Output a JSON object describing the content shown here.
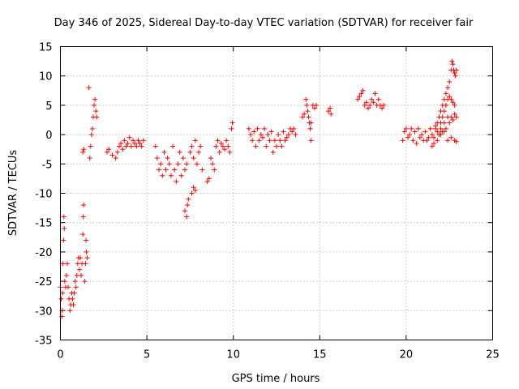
{
  "chart_data": {
    "type": "scatter",
    "title": "Day 346 of 2025, Sidereal Day-to-day VTEC variation (SDTVAR) for receiver fair",
    "xlabel": "GPS time / hours",
    "ylabel": "SDTVAR / TECUs",
    "xlim": [
      0,
      25
    ],
    "ylim": [
      -35,
      15
    ],
    "xticks": [
      0,
      5,
      10,
      15,
      20,
      25
    ],
    "yticks": [
      -35,
      -30,
      -25,
      -20,
      -15,
      -10,
      -5,
      0,
      5,
      10,
      15
    ],
    "xtick_labels": [
      "0",
      "5",
      "10",
      "15",
      "20",
      "25"
    ],
    "ytick_labels": [
      "-35",
      "-30",
      "-25",
      "-20",
      "-15",
      "-10",
      "-5",
      "0",
      "5",
      "10",
      "15"
    ],
    "grid": true,
    "marker": "+",
    "series": [
      {
        "name": "SDTVAR",
        "color": "#ff0000",
        "points": [
          [
            0.0,
            -26
          ],
          [
            0.05,
            -28
          ],
          [
            0.08,
            -31
          ],
          [
            0.1,
            -30
          ],
          [
            0.12,
            -27
          ],
          [
            0.15,
            -22
          ],
          [
            0.18,
            -18
          ],
          [
            0.2,
            -14
          ],
          [
            0.22,
            -16
          ],
          [
            0.25,
            -25
          ],
          [
            0.3,
            -26
          ],
          [
            0.35,
            -24
          ],
          [
            0.4,
            -22
          ],
          [
            0.45,
            -26
          ],
          [
            0.5,
            -28
          ],
          [
            0.55,
            -30
          ],
          [
            0.6,
            -29
          ],
          [
            0.65,
            -27
          ],
          [
            0.7,
            -28
          ],
          [
            0.75,
            -29
          ],
          [
            0.8,
            -27
          ],
          [
            0.85,
            -25
          ],
          [
            0.9,
            -26
          ],
          [
            0.95,
            -24
          ],
          [
            1.0,
            -22
          ],
          [
            1.05,
            -21
          ],
          [
            1.1,
            -23
          ],
          [
            1.15,
            -21
          ],
          [
            1.2,
            -24
          ],
          [
            1.25,
            -22
          ],
          [
            1.3,
            -17
          ],
          [
            1.32,
            -14
          ],
          [
            1.34,
            -12
          ],
          [
            1.4,
            -25
          ],
          [
            1.45,
            -22
          ],
          [
            1.5,
            -20
          ],
          [
            1.48,
            -18
          ],
          [
            1.55,
            -21
          ],
          [
            1.3,
            -3
          ],
          [
            1.35,
            -2.5
          ],
          [
            1.7,
            -4
          ],
          [
            1.75,
            -2
          ],
          [
            1.8,
            0
          ],
          [
            1.85,
            1
          ],
          [
            1.9,
            3
          ],
          [
            1.95,
            5
          ],
          [
            2.0,
            6
          ],
          [
            2.05,
            4
          ],
          [
            2.1,
            3
          ],
          [
            1.65,
            8
          ],
          [
            2.7,
            -3
          ],
          [
            2.8,
            -2.5
          ],
          [
            3.0,
            -3.5
          ],
          [
            3.2,
            -4
          ],
          [
            3.3,
            -3
          ],
          [
            3.4,
            -2
          ],
          [
            3.5,
            -1.5
          ],
          [
            3.6,
            -2.5
          ],
          [
            3.7,
            -1
          ],
          [
            3.8,
            -2
          ],
          [
            3.9,
            -1.5
          ],
          [
            4.0,
            -0.5
          ],
          [
            4.1,
            -2
          ],
          [
            4.2,
            -1
          ],
          [
            4.3,
            -1.5
          ],
          [
            4.4,
            -2
          ],
          [
            4.5,
            -1
          ],
          [
            4.6,
            -1.5
          ],
          [
            4.7,
            -2
          ],
          [
            4.8,
            -1
          ],
          [
            5.5,
            -2
          ],
          [
            5.6,
            -4
          ],
          [
            5.7,
            -6
          ],
          [
            5.8,
            -5
          ],
          [
            5.9,
            -7
          ],
          [
            6.0,
            -3
          ],
          [
            6.1,
            -6
          ],
          [
            6.2,
            -4
          ],
          [
            6.3,
            -5
          ],
          [
            6.4,
            -7
          ],
          [
            6.5,
            -2
          ],
          [
            6.6,
            -6
          ],
          [
            6.7,
            -8
          ],
          [
            6.8,
            -5
          ],
          [
            6.9,
            -3
          ],
          [
            7.0,
            -7
          ],
          [
            7.1,
            -4
          ],
          [
            7.2,
            -6
          ],
          [
            7.3,
            -5
          ],
          [
            7.2,
            -13
          ],
          [
            7.3,
            -14
          ],
          [
            7.35,
            -12
          ],
          [
            7.4,
            -11
          ],
          [
            7.6,
            -10
          ],
          [
            7.7,
            -9
          ],
          [
            7.8,
            -9.5
          ],
          [
            7.5,
            -3
          ],
          [
            7.6,
            -2
          ],
          [
            7.7,
            -4
          ],
          [
            7.8,
            -1
          ],
          [
            7.9,
            -5
          ],
          [
            8.0,
            -3
          ],
          [
            8.1,
            -2
          ],
          [
            8.2,
            -6
          ],
          [
            8.5,
            -8
          ],
          [
            8.6,
            -7.5
          ],
          [
            8.7,
            -4
          ],
          [
            8.8,
            -5
          ],
          [
            8.9,
            -6
          ],
          [
            9.0,
            -2
          ],
          [
            9.1,
            -1
          ],
          [
            9.2,
            -3
          ],
          [
            9.3,
            -1.5
          ],
          [
            9.4,
            -2
          ],
          [
            9.5,
            -2.5
          ],
          [
            9.6,
            -1
          ],
          [
            9.7,
            -2
          ],
          [
            9.8,
            -3
          ],
          [
            9.9,
            1
          ],
          [
            9.95,
            2
          ],
          [
            10.9,
            1
          ],
          [
            11.0,
            0
          ],
          [
            11.1,
            -1
          ],
          [
            11.2,
            0.5
          ],
          [
            11.3,
            -2
          ],
          [
            11.4,
            1
          ],
          [
            11.5,
            -1
          ],
          [
            11.6,
            0
          ],
          [
            11.7,
            -0.5
          ],
          [
            11.8,
            1
          ],
          [
            11.9,
            -2
          ],
          [
            12.0,
            0
          ],
          [
            12.1,
            -1
          ],
          [
            12.2,
            0.5
          ],
          [
            12.3,
            -3
          ],
          [
            12.4,
            -1
          ],
          [
            12.5,
            -2
          ],
          [
            12.6,
            0
          ],
          [
            12.7,
            -1
          ],
          [
            12.8,
            -2
          ],
          [
            12.9,
            0.5
          ],
          [
            13.0,
            -1
          ],
          [
            13.1,
            -0.5
          ],
          [
            13.2,
            0
          ],
          [
            13.3,
            1
          ],
          [
            13.4,
            0.5
          ],
          [
            13.5,
            1
          ],
          [
            13.6,
            0
          ],
          [
            14.0,
            3
          ],
          [
            14.1,
            3.5
          ],
          [
            14.2,
            6
          ],
          [
            14.25,
            5
          ],
          [
            14.3,
            4
          ],
          [
            14.35,
            3
          ],
          [
            14.4,
            2
          ],
          [
            14.45,
            1
          ],
          [
            14.5,
            -1
          ],
          [
            14.5,
            2
          ],
          [
            14.6,
            5
          ],
          [
            14.7,
            4.5
          ],
          [
            14.8,
            5
          ],
          [
            15.5,
            4
          ],
          [
            15.6,
            4.5
          ],
          [
            15.65,
            3.5
          ],
          [
            17.2,
            6
          ],
          [
            17.3,
            6.5
          ],
          [
            17.4,
            7
          ],
          [
            17.5,
            7.5
          ],
          [
            17.6,
            5
          ],
          [
            17.7,
            5.5
          ],
          [
            17.8,
            4.5
          ],
          [
            17.9,
            5
          ],
          [
            18.0,
            6
          ],
          [
            18.1,
            5.5
          ],
          [
            18.2,
            7
          ],
          [
            18.3,
            5
          ],
          [
            18.4,
            6
          ],
          [
            18.5,
            5
          ],
          [
            18.6,
            4.5
          ],
          [
            18.7,
            5
          ],
          [
            19.8,
            -1
          ],
          [
            19.9,
            0.5
          ],
          [
            20.0,
            1
          ],
          [
            20.1,
            -0.5
          ],
          [
            20.2,
            0
          ],
          [
            20.3,
            1
          ],
          [
            20.4,
            -1
          ],
          [
            20.5,
            0.5
          ],
          [
            20.6,
            -1.5
          ],
          [
            20.7,
            1
          ],
          [
            20.8,
            -0.5
          ],
          [
            20.9,
            0
          ],
          [
            21.0,
            -1
          ],
          [
            21.1,
            0.5
          ],
          [
            21.2,
            -1
          ],
          [
            21.3,
            -0.5
          ],
          [
            21.4,
            1
          ],
          [
            21.5,
            0
          ],
          [
            21.6,
            -0.5
          ],
          [
            21.7,
            1.5
          ],
          [
            21.8,
            0.5
          ],
          [
            21.9,
            0
          ],
          [
            22.0,
            1
          ],
          [
            22.1,
            0.5
          ],
          [
            22.2,
            2
          ],
          [
            22.3,
            1
          ],
          [
            22.4,
            3
          ],
          [
            22.5,
            2
          ],
          [
            22.6,
            3
          ],
          [
            22.7,
            2.5
          ],
          [
            22.8,
            3.5
          ],
          [
            22.9,
            3
          ],
          [
            21.5,
            -2
          ],
          [
            21.6,
            -1.5
          ],
          [
            21.8,
            -1
          ],
          [
            22.0,
            0
          ],
          [
            22.2,
            0.5
          ],
          [
            22.4,
            -1
          ],
          [
            22.6,
            -0.5
          ],
          [
            22.8,
            -1
          ],
          [
            22.9,
            -1.2
          ],
          [
            21.7,
            1
          ],
          [
            21.8,
            2
          ],
          [
            21.9,
            3
          ],
          [
            22.0,
            4
          ],
          [
            22.1,
            5
          ],
          [
            22.2,
            6
          ],
          [
            22.3,
            7
          ],
          [
            22.4,
            8
          ],
          [
            22.5,
            9
          ],
          [
            22.6,
            11
          ],
          [
            22.65,
            12.5
          ],
          [
            22.7,
            12
          ],
          [
            22.75,
            11
          ],
          [
            22.8,
            10.5
          ],
          [
            22.85,
            10
          ],
          [
            22.9,
            11
          ],
          [
            22.3,
            5
          ],
          [
            22.4,
            6
          ],
          [
            22.5,
            6.5
          ],
          [
            22.6,
            6
          ],
          [
            22.7,
            5.5
          ],
          [
            22.8,
            5
          ],
          [
            22.0,
            2
          ],
          [
            22.1,
            3
          ],
          [
            22.2,
            4
          ],
          [
            22.3,
            5
          ]
        ]
      }
    ]
  }
}
